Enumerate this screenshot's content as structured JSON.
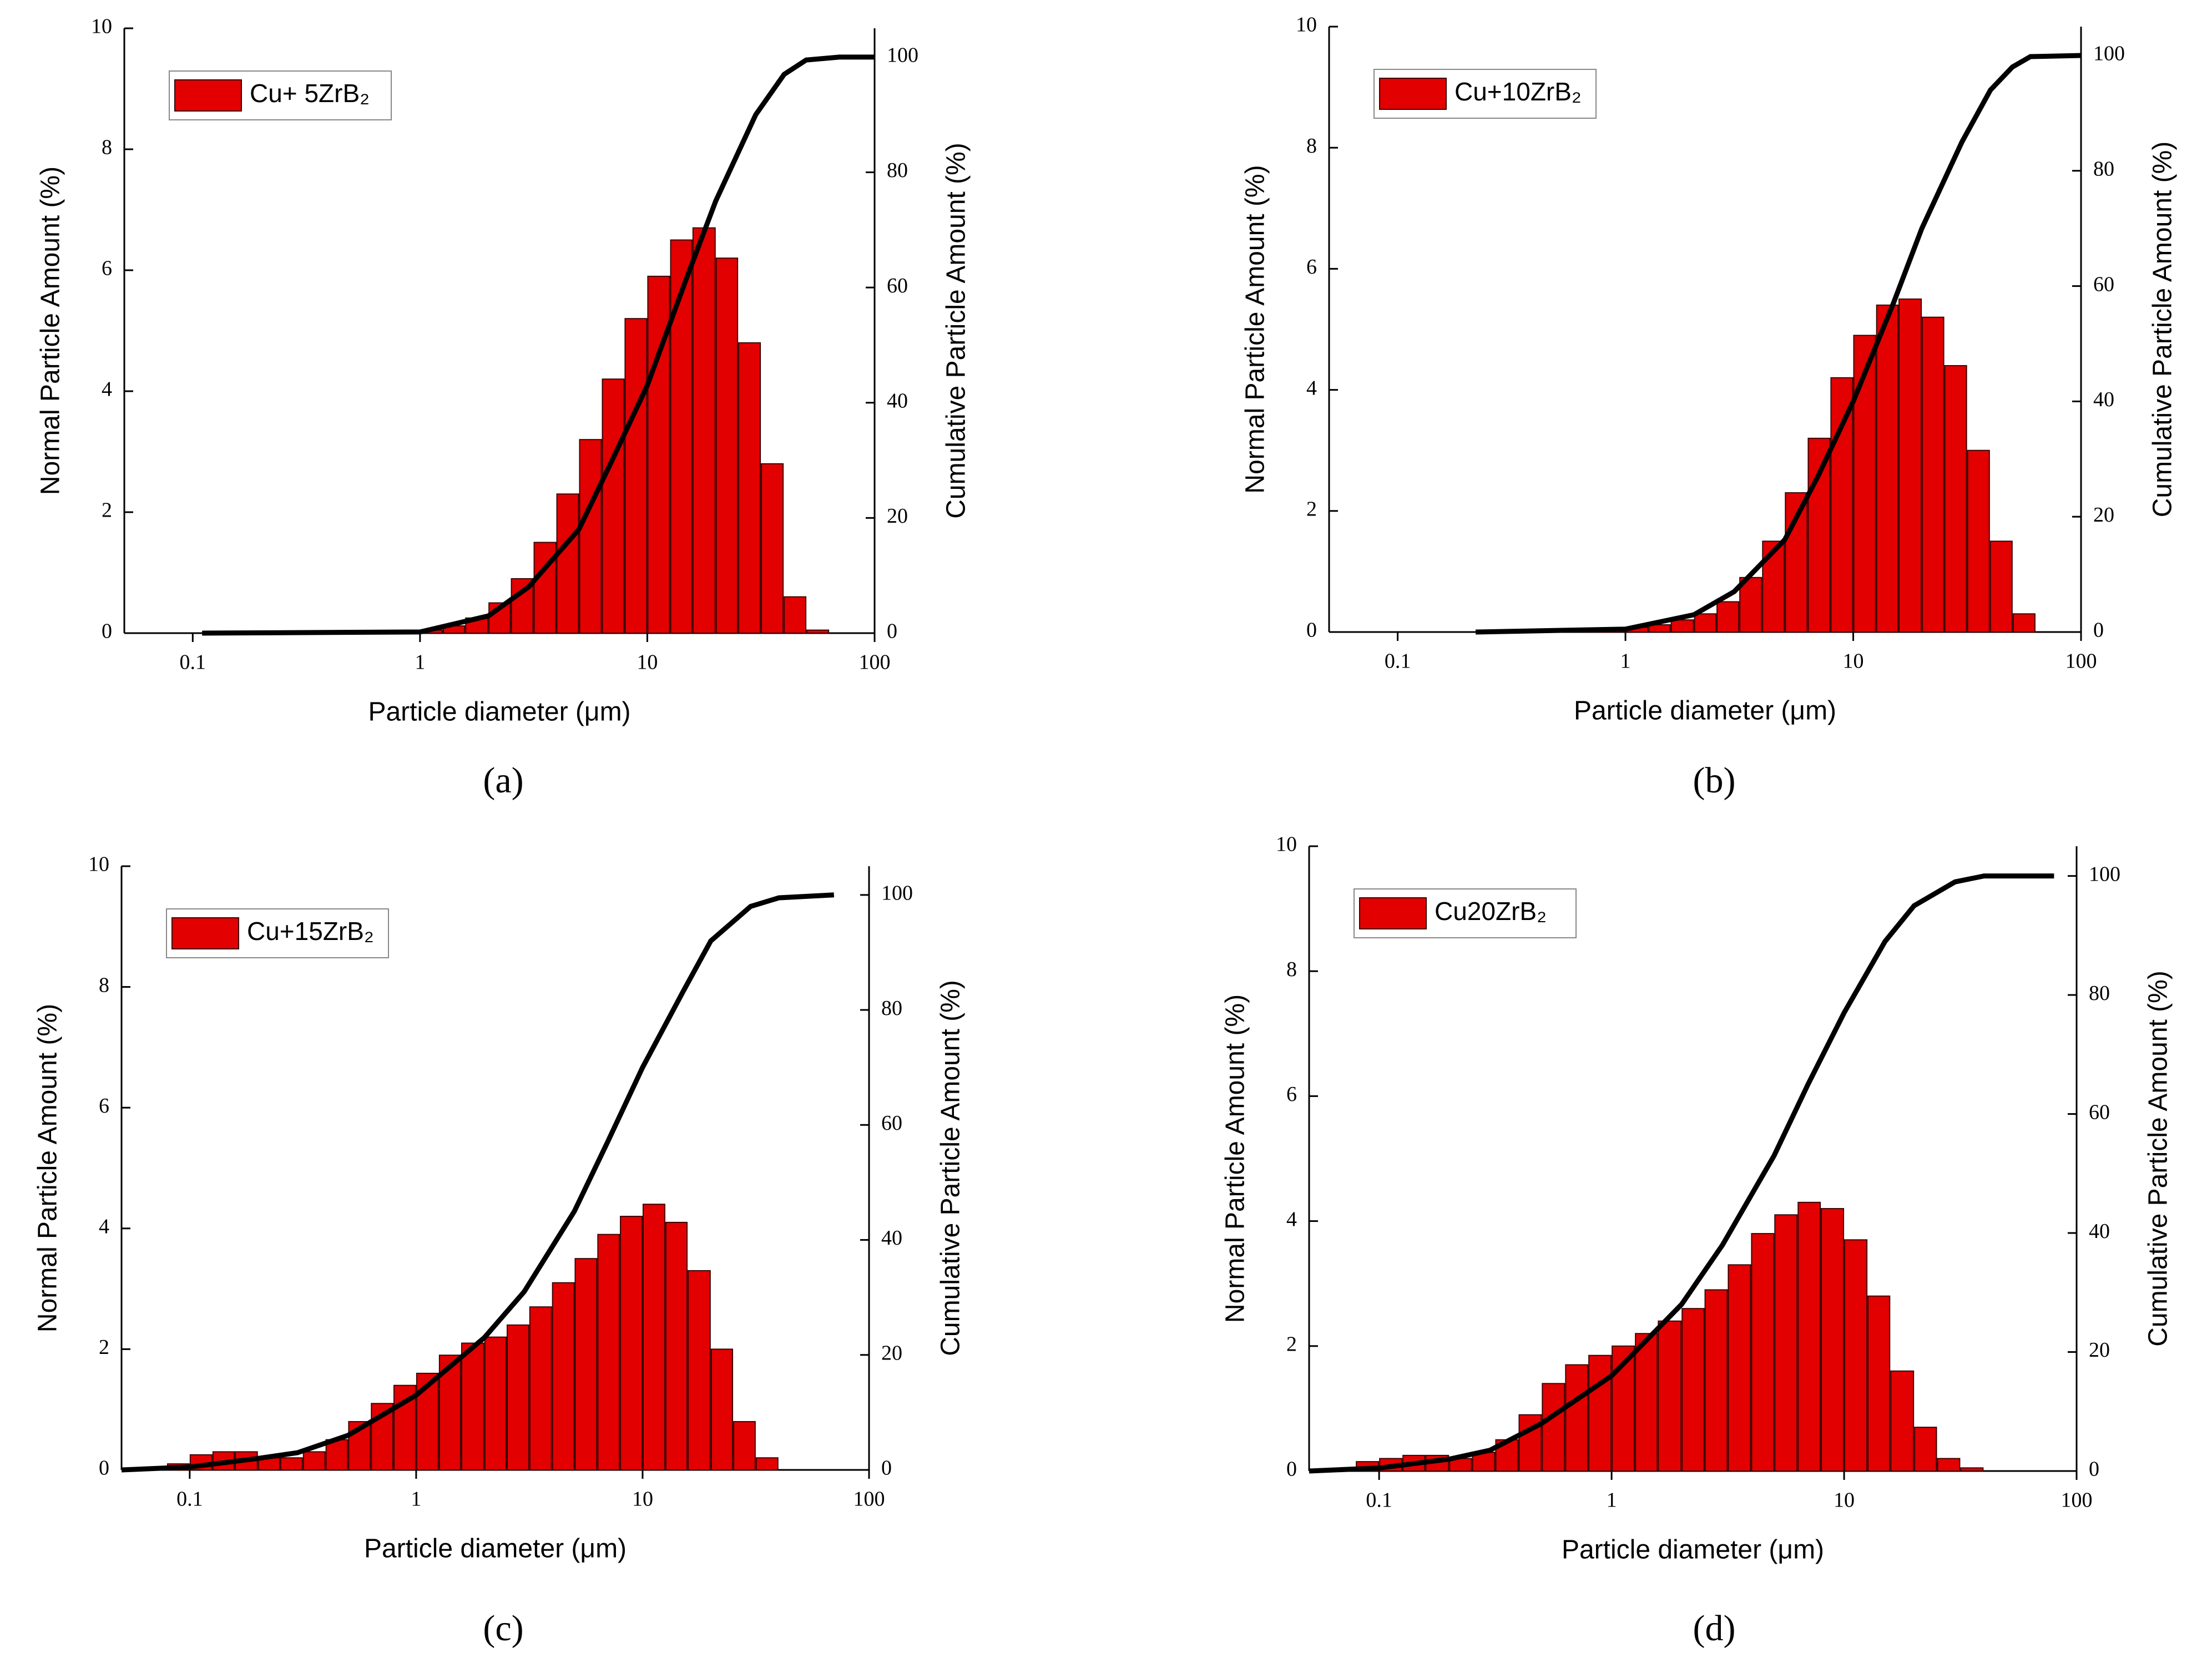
{
  "chart_data": [
    {
      "type": "histogram",
      "panel_label": "(a)",
      "xlabel": "Particle diameter (μm)",
      "ylabel": "Normal Particle Amount (%)",
      "y2label": "Cumulative Particle Amount (%)",
      "log_x": true,
      "xlim": [
        0.05,
        100
      ],
      "xticks": [
        0.1,
        1,
        10,
        100
      ],
      "ylim": [
        0,
        10
      ],
      "yticks": [
        0,
        2,
        4,
        6,
        8,
        10
      ],
      "y2lim": [
        0,
        105
      ],
      "y2ticks": [
        0,
        20,
        40,
        60,
        80,
        100
      ],
      "legend": "upper left",
      "bins": [
        1,
        1.26,
        1.58,
        2,
        2.51,
        3.16,
        3.98,
        5.01,
        6.31,
        7.94,
        10,
        12.6,
        15.8,
        20,
        25.1,
        31.6,
        39.8,
        50.1,
        63.1
      ],
      "series": [
        {
          "name": "Cu+ 5ZrB₂",
          "color": "#e30000",
          "values": [
            0.05,
            0.12,
            0.25,
            0.5,
            0.9,
            1.5,
            2.3,
            3.2,
            4.2,
            5.2,
            5.9,
            6.5,
            6.7,
            6.2,
            4.8,
            2.8,
            0.6,
            0.05
          ]
        },
        {
          "type": "line",
          "axis": "y2",
          "color": "#000000",
          "x": [
            0.11,
            1,
            2,
            3,
            5,
            7,
            10,
            15,
            20,
            30,
            40,
            50,
            70,
            100
          ],
          "values": [
            0,
            0.2,
            3,
            8,
            18,
            30,
            43,
            62,
            75,
            90,
            97,
            99.5,
            100,
            100
          ]
        }
      ]
    },
    {
      "type": "histogram",
      "panel_label": "(b)",
      "xlabel": "Particle diameter (μm)",
      "ylabel": "Normal Particle Amount (%)",
      "y2label": "Cumulative Particle Amount (%)",
      "log_x": true,
      "xlim": [
        0.05,
        100
      ],
      "xticks": [
        0.1,
        1,
        10,
        100
      ],
      "ylim": [
        0,
        10
      ],
      "yticks": [
        0,
        2,
        4,
        6,
        8,
        10
      ],
      "y2lim": [
        0,
        105
      ],
      "y2ticks": [
        0,
        20,
        40,
        60,
        80,
        100
      ],
      "legend": "upper left",
      "bins": [
        0.631,
        0.794,
        1,
        1.26,
        1.58,
        2,
        2.51,
        3.16,
        3.98,
        5.01,
        6.31,
        7.94,
        10,
        12.6,
        15.8,
        20,
        25.1,
        31.6,
        39.8,
        50.1,
        63.1
      ],
      "series": [
        {
          "name": "Cu+10ZrB₂",
          "color": "#e30000",
          "values": [
            0.02,
            0.04,
            0.08,
            0.12,
            0.2,
            0.3,
            0.5,
            0.9,
            1.5,
            2.3,
            3.2,
            4.2,
            4.9,
            5.4,
            5.5,
            5.2,
            4.4,
            3.0,
            1.5,
            0.3
          ]
        },
        {
          "type": "line",
          "axis": "y2",
          "color": "#000000",
          "x": [
            0.22,
            1,
            2,
            3,
            5,
            7,
            10,
            15,
            20,
            30,
            40,
            50,
            60,
            100
          ],
          "values": [
            0,
            0.5,
            3,
            7,
            16,
            27,
            40,
            57,
            70,
            85,
            94,
            98,
            99.8,
            100
          ]
        }
      ]
    },
    {
      "type": "histogram",
      "panel_label": "(c)",
      "xlabel": "Particle diameter (μm)",
      "ylabel": "Normal Particle Amount (%)",
      "y2label": "Cumulative Particle Amount (%)",
      "log_x": true,
      "xlim": [
        0.05,
        100
      ],
      "xticks": [
        0.1,
        1,
        10,
        100
      ],
      "ylim": [
        0,
        10
      ],
      "yticks": [
        0,
        2,
        4,
        6,
        8,
        10
      ],
      "y2lim": [
        0,
        105
      ],
      "y2ticks": [
        0,
        20,
        40,
        60,
        80,
        100
      ],
      "legend": "upper left",
      "bins": [
        0.0794,
        0.1,
        0.126,
        0.158,
        0.2,
        0.251,
        0.316,
        0.398,
        0.501,
        0.631,
        0.794,
        1,
        1.26,
        1.58,
        2,
        2.51,
        3.16,
        3.98,
        5.01,
        6.31,
        7.94,
        10,
        12.6,
        15.8,
        20,
        25.1,
        31.6,
        39.8
      ],
      "series": [
        {
          "name": "Cu+15ZrB₂",
          "color": "#e30000",
          "values": [
            0.1,
            0.25,
            0.3,
            0.3,
            0.2,
            0.2,
            0.3,
            0.5,
            0.8,
            1.1,
            1.4,
            1.6,
            1.9,
            2.1,
            2.2,
            2.4,
            2.7,
            3.1,
            3.5,
            3.9,
            4.2,
            4.4,
            4.1,
            3.3,
            2.0,
            0.8,
            0.2
          ]
        },
        {
          "type": "line",
          "axis": "y2",
          "color": "#000000",
          "x": [
            0.05,
            0.1,
            0.2,
            0.3,
            0.5,
            1,
            2,
            3,
            5,
            7,
            10,
            15,
            20,
            30,
            40,
            70
          ],
          "values": [
            0,
            0.5,
            2,
            3,
            6,
            13,
            23,
            31,
            45,
            57,
            70,
            83,
            92,
            98,
            99.5,
            100
          ]
        }
      ]
    },
    {
      "type": "histogram",
      "panel_label": "(d)",
      "xlabel": "Particle diameter (μm)",
      "ylabel": "Normal Particle Amount (%)",
      "y2label": "Cumulative Particle Amount (%)",
      "log_x": true,
      "xlim": [
        0.05,
        100
      ],
      "xticks": [
        0.1,
        1,
        10,
        100
      ],
      "ylim": [
        0,
        10
      ],
      "yticks": [
        0,
        2,
        4,
        6,
        8,
        10
      ],
      "y2lim": [
        0,
        105
      ],
      "y2ticks": [
        0,
        20,
        40,
        60,
        80,
        100
      ],
      "legend": "upper left",
      "bins": [
        0.0794,
        0.1,
        0.126,
        0.158,
        0.2,
        0.251,
        0.316,
        0.398,
        0.501,
        0.631,
        0.794,
        1,
        1.26,
        1.58,
        2,
        2.51,
        3.16,
        3.98,
        5.01,
        6.31,
        7.94,
        10,
        12.6,
        15.8,
        20,
        25.1,
        31.6,
        39.8
      ],
      "series": [
        {
          "name": "Cu20ZrB₂",
          "color": "#e30000",
          "values": [
            0.15,
            0.2,
            0.25,
            0.25,
            0.2,
            0.3,
            0.5,
            0.9,
            1.4,
            1.7,
            1.85,
            2.0,
            2.2,
            2.4,
            2.6,
            2.9,
            3.3,
            3.8,
            4.1,
            4.3,
            4.2,
            3.7,
            2.8,
            1.6,
            0.7,
            0.2,
            0.05
          ]
        },
        {
          "type": "line",
          "axis": "y2",
          "color": "#000000",
          "x": [
            0.05,
            0.1,
            0.2,
            0.3,
            0.5,
            1,
            2,
            3,
            5,
            7,
            10,
            15,
            20,
            30,
            40,
            80
          ],
          "values": [
            0,
            0.5,
            2,
            3.5,
            8,
            16,
            28,
            38,
            53,
            65,
            77,
            89,
            95,
            99,
            100,
            100
          ]
        }
      ]
    }
  ]
}
